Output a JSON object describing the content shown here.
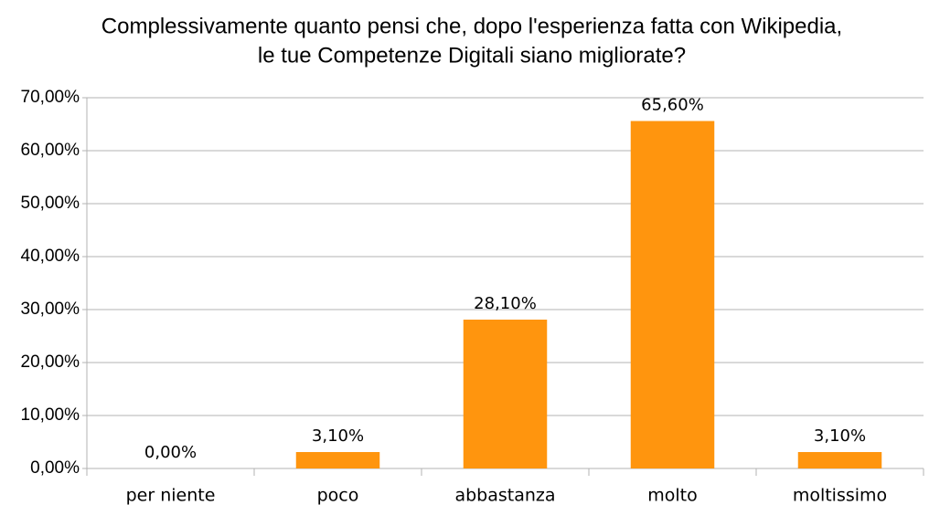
{
  "chart_data": {
    "type": "bar",
    "title": [
      "Complessivamente quanto pensi che, dopo l'esperienza fatta con Wikipedia,",
      "le tue Competenze Digitali siano migliorate?"
    ],
    "categories": [
      "per niente",
      "poco",
      "abbastanza",
      "molto",
      "moltissimo"
    ],
    "values": [
      0,
      3.1,
      28.1,
      65.6,
      3.1
    ],
    "value_labels": [
      "0,00%",
      "3,10%",
      "28,10%",
      "65,60%",
      "3,10%"
    ],
    "color": "#ff950e",
    "ylim": [
      0,
      70
    ],
    "yticks": [
      {
        "value": 0,
        "label": "0,00%"
      },
      {
        "value": 10,
        "label": "10,00%"
      },
      {
        "value": 20,
        "label": "20,00%"
      },
      {
        "value": 30,
        "label": "30,00%"
      },
      {
        "value": 40,
        "label": "40,00%"
      },
      {
        "value": 50,
        "label": "50,00%"
      },
      {
        "value": 60,
        "label": "60,00%"
      },
      {
        "value": 70,
        "label": "70,00%"
      }
    ],
    "grid": true
  }
}
